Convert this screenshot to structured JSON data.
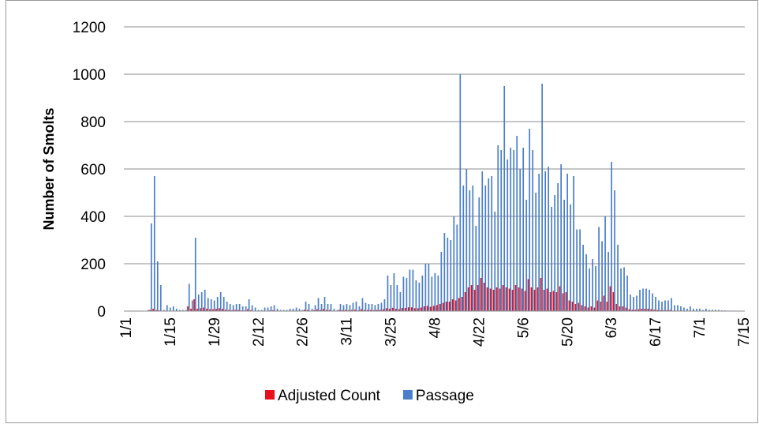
{
  "chart_data": {
    "type": "bar",
    "y_label": "Number of Smolts",
    "categories": [
      "1/1",
      null,
      null,
      null,
      null,
      null,
      null,
      null,
      null,
      null,
      null,
      null,
      null,
      null,
      "1/15",
      null,
      null,
      null,
      null,
      null,
      null,
      null,
      null,
      null,
      null,
      null,
      null,
      null,
      "1/29",
      null,
      null,
      null,
      null,
      null,
      null,
      null,
      null,
      null,
      null,
      null,
      null,
      null,
      "2/12",
      null,
      null,
      null,
      null,
      null,
      null,
      null,
      null,
      null,
      null,
      null,
      null,
      null,
      "2/26",
      null,
      null,
      null,
      null,
      null,
      null,
      null,
      null,
      null,
      null,
      null,
      null,
      null,
      "3/11",
      null,
      null,
      null,
      null,
      null,
      null,
      null,
      null,
      null,
      null,
      null,
      null,
      null,
      "3/25",
      null,
      null,
      null,
      null,
      null,
      null,
      null,
      null,
      null,
      null,
      null,
      null,
      null,
      "4/8",
      null,
      null,
      null,
      null,
      null,
      null,
      null,
      null,
      null,
      null,
      null,
      null,
      null,
      "4/22",
      null,
      null,
      null,
      null,
      null,
      null,
      null,
      null,
      null,
      null,
      null,
      null,
      null,
      "5/6",
      null,
      null,
      null,
      null,
      null,
      null,
      null,
      null,
      null,
      null,
      null,
      null,
      null,
      "5/20",
      null,
      null,
      null,
      null,
      null,
      null,
      null,
      null,
      null,
      null,
      null,
      null,
      null,
      "6/3",
      null,
      null,
      null,
      null,
      null,
      null,
      null,
      null,
      null,
      null,
      null,
      null,
      null,
      "6/17",
      null,
      null,
      null,
      null,
      null,
      null,
      null,
      null,
      null,
      null,
      null,
      null,
      null,
      "7/1",
      null,
      null,
      null,
      null,
      null,
      null,
      null,
      null,
      null,
      null,
      null,
      null,
      null,
      "7/15"
    ],
    "series": [
      {
        "name": "Adjusted Count",
        "color": "#e8101a",
        "values": [
          0,
          0,
          0,
          0,
          0,
          0,
          0,
          0,
          5,
          10,
          5,
          3,
          0,
          2,
          1,
          1,
          1,
          0,
          0,
          0,
          20,
          10,
          50,
          10,
          12,
          15,
          10,
          8,
          8,
          10,
          12,
          10,
          6,
          5,
          4,
          5,
          5,
          3,
          3,
          8,
          4,
          2,
          1,
          1,
          2,
          2,
          3,
          4,
          2,
          1,
          1,
          1,
          2,
          2,
          2,
          2,
          1,
          6,
          5,
          2,
          4,
          8,
          5,
          9,
          5,
          5,
          2,
          1,
          5,
          4,
          5,
          4,
          5,
          6,
          3,
          8,
          5,
          5,
          5,
          4,
          5,
          5,
          8,
          12,
          10,
          14,
          10,
          8,
          13,
          13,
          16,
          16,
          12,
          12,
          15,
          20,
          22,
          18,
          22,
          25,
          30,
          35,
          40,
          40,
          50,
          45,
          55,
          60,
          80,
          100,
          110,
          90,
          110,
          140,
          120,
          100,
          95,
          90,
          100,
          95,
          110,
          100,
          95,
          90,
          110,
          100,
          95,
          85,
          135,
          100,
          90,
          100,
          140,
          90,
          95,
          80,
          85,
          80,
          105,
          75,
          80,
          45,
          40,
          30,
          35,
          25,
          20,
          15,
          20,
          15,
          45,
          40,
          65,
          40,
          105,
          80,
          30,
          20,
          20,
          15,
          8,
          6,
          6,
          8,
          10,
          10,
          10,
          8,
          6,
          5,
          4,
          4,
          4,
          5,
          2,
          2,
          2,
          2,
          1,
          2,
          1,
          1,
          1,
          0,
          1,
          0,
          0,
          0,
          0,
          0,
          0,
          0,
          0,
          0,
          0,
          0,
          0
        ]
      },
      {
        "name": "Passage",
        "color": "#4a7ec8",
        "values": [
          0,
          0,
          0,
          0,
          0,
          0,
          0,
          5,
          370,
          570,
          210,
          110,
          5,
          25,
          15,
          20,
          10,
          5,
          5,
          5,
          115,
          45,
          310,
          70,
          80,
          90,
          55,
          50,
          45,
          60,
          80,
          60,
          40,
          30,
          25,
          30,
          30,
          20,
          20,
          50,
          25,
          15,
          5,
          5,
          15,
          15,
          20,
          25,
          10,
          5,
          5,
          5,
          10,
          10,
          15,
          10,
          5,
          40,
          30,
          10,
          25,
          55,
          30,
          60,
          30,
          30,
          10,
          5,
          30,
          25,
          30,
          25,
          35,
          40,
          20,
          55,
          35,
          30,
          30,
          25,
          30,
          35,
          50,
          150,
          110,
          160,
          110,
          80,
          145,
          140,
          175,
          175,
          130,
          120,
          150,
          200,
          200,
          145,
          160,
          150,
          250,
          330,
          310,
          300,
          400,
          365,
          1000,
          530,
          600,
          510,
          530,
          360,
          480,
          590,
          530,
          560,
          570,
          420,
          700,
          680,
          950,
          640,
          690,
          680,
          740,
          600,
          690,
          470,
          770,
          680,
          500,
          580,
          960,
          590,
          610,
          440,
          490,
          540,
          620,
          470,
          580,
          450,
          570,
          345,
          345,
          280,
          240,
          180,
          220,
          190,
          355,
          295,
          400,
          250,
          630,
          510,
          280,
          180,
          185,
          150,
          70,
          60,
          65,
          90,
          95,
          95,
          90,
          75,
          60,
          45,
          40,
          45,
          45,
          55,
          25,
          25,
          20,
          15,
          10,
          20,
          10,
          10,
          10,
          5,
          10,
          5,
          5,
          5,
          5,
          3,
          3,
          2,
          2,
          2,
          0,
          0,
          0
        ]
      }
    ],
    "ylim": [
      0,
      1200
    ],
    "yticks": [
      0,
      200,
      400,
      600,
      800,
      1000,
      1200
    ],
    "grid": true,
    "legend": "bottom"
  }
}
